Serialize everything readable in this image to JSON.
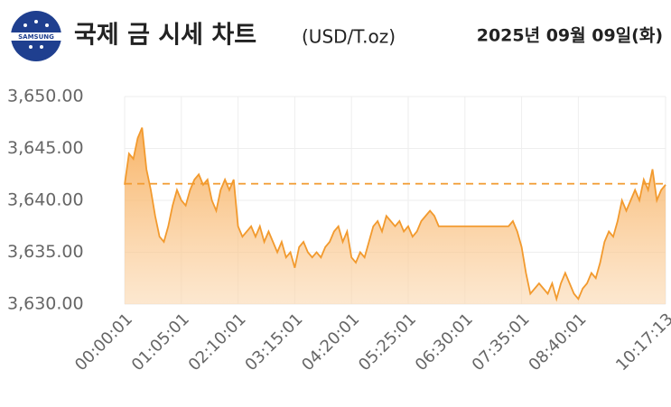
{
  "header": {
    "logo_text": "SAMSUNG",
    "title": "국제 금 시세 차트",
    "unit": "(USD/T.oz)",
    "date": "2025년 09월 09일(화)"
  },
  "chart_data": {
    "type": "area",
    "color": "#f29a2e",
    "grid": true,
    "reference_line": 3641.6,
    "categories": [
      "00:00:01",
      null,
      null,
      null,
      null,
      null,
      null,
      null,
      null,
      null,
      null,
      null,
      null,
      "01:05:01",
      null,
      null,
      null,
      null,
      null,
      null,
      null,
      null,
      null,
      null,
      null,
      null,
      "02:10:01",
      null,
      null,
      null,
      null,
      null,
      null,
      null,
      null,
      null,
      null,
      null,
      null,
      "03:15:01",
      null,
      null,
      null,
      null,
      null,
      null,
      null,
      null,
      null,
      null,
      null,
      null,
      "04:20:01",
      null,
      null,
      null,
      null,
      null,
      null,
      null,
      null,
      null,
      null,
      null,
      null,
      "05:25:01",
      null,
      null,
      null,
      null,
      null,
      null,
      null,
      null,
      null,
      null,
      null,
      null,
      "06:30:01",
      null,
      null,
      null,
      null,
      null,
      null,
      null,
      null,
      null,
      null,
      null,
      null,
      "07:35:01",
      null,
      null,
      null,
      null,
      null,
      null,
      null,
      null,
      null,
      null,
      null,
      null,
      "08:40:01",
      null,
      null,
      null,
      null,
      null,
      null,
      null,
      null,
      null,
      null,
      null,
      null,
      null,
      null,
      null,
      null,
      null,
      null,
      null,
      "10:17:13"
    ],
    "values": [
      3641.5,
      3644.5,
      3644,
      3646,
      3647,
      3643,
      3641,
      3638.5,
      3636.5,
      3636,
      3637.5,
      3639.5,
      3641,
      3640,
      3639.5,
      3641,
      3642,
      3642.5,
      3641.5,
      3642,
      3640,
      3639,
      3641,
      3642,
      3641,
      3642,
      3637.5,
      3636.5,
      3637,
      3637.5,
      3636.5,
      3637.5,
      3636,
      3637,
      3636,
      3635,
      3636,
      3634.5,
      3635,
      3633.5,
      3635.5,
      3636,
      3635,
      3634.5,
      3635,
      3634.5,
      3635.5,
      3636,
      3637,
      3637.5,
      3636,
      3637,
      3634.5,
      3634,
      3635,
      3634.5,
      3636,
      3637.5,
      3638,
      3637,
      3638.5,
      3638,
      3637.5,
      3638,
      3637,
      3637.5,
      3636.5,
      3637,
      3638,
      3638.5,
      3639,
      3638.5,
      3637.5,
      3637.5,
      3637.5,
      3637.5,
      3637.5,
      3637.5,
      3637.5,
      3637.5,
      3637.5,
      3637.5,
      3637.5,
      3637.5,
      3637.5,
      3637.5,
      3637.5,
      3637.5,
      3637.5,
      3638,
      3637,
      3635.5,
      3633,
      3631,
      3631.5,
      3632,
      3631.5,
      3631,
      3632,
      3630.5,
      3632,
      3633,
      3632,
      3631,
      3630.5,
      3631.5,
      3632,
      3633,
      3632.5,
      3634,
      3636,
      3637,
      3636.5,
      3638,
      3640,
      3639,
      3640,
      3641,
      3640,
      3642,
      3641,
      3643,
      3640,
      3641,
      3641.5
    ],
    "ylim": [
      3630,
      3650
    ],
    "yticks": [
      {
        "value": 3630,
        "label": "3,630.00"
      },
      {
        "value": 3635,
        "label": "3,635.00"
      },
      {
        "value": 3640,
        "label": "3,640.00"
      },
      {
        "value": 3645,
        "label": "3,645.00"
      },
      {
        "value": 3650,
        "label": "3,650.00"
      }
    ]
  }
}
